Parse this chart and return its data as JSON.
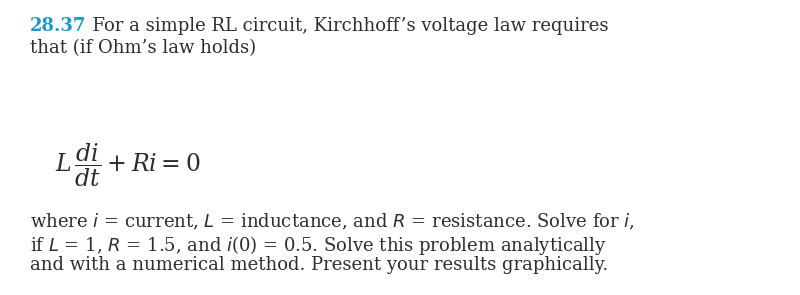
{
  "problem_number": "28.37",
  "problem_number_color": "#1B9ACA",
  "background_color": "#ffffff",
  "text_color": "#2d2d2d",
  "fontsize_main": 13.0,
  "fontsize_eq": 17,
  "fig_width": 8.0,
  "fig_height": 2.95,
  "dpi": 100,
  "line1_suffix": "  For a simple RL circuit, Kirchhoff’s voltage law requires",
  "line2": "that (if Ohm’s law holds)",
  "body_line1": "where $i$ = current, $L$ = inductance, and $R$ = resistance. Solve for $i$,",
  "body_line2": "if $L$ = 1, $R$ = 1.5, and $i$(0) = 0.5. Solve this problem analytically",
  "body_line3": "and with a numerical method. Present your results graphically."
}
